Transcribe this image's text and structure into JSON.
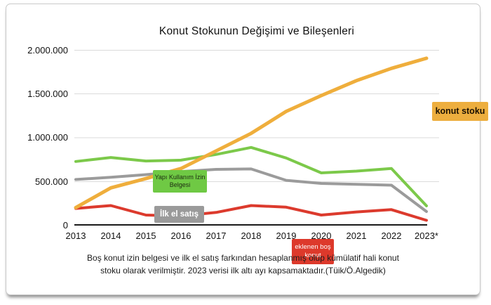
{
  "title": "Konut Stokunun Değişimi ve Bileşenleri",
  "caption": {
    "line1": "Boş konut izin belgesi ve ilk el satış farkından hesaplanmış olup kümülatif hali konut",
    "line2": "stoku olarak verilmiştir. 2023 verisi ilk altı ayı kapsamaktadır.(Tüik/Ö.Algedik)"
  },
  "y_axis": {
    "labels": [
      "2.000.000",
      "1.500.000",
      "1.000.000",
      "500.000",
      "0"
    ]
  },
  "x_axis": {
    "labels": [
      "2013",
      "2014",
      "2015",
      "2016",
      "2017",
      "2018",
      "2019",
      "2020",
      "2021",
      "2022",
      "2023*"
    ]
  },
  "series_labels": {
    "konut_stoku": "konut stoku",
    "yapi_kullanim": "Yapı Kullanım İzin\nBelgesi",
    "ilk_el_satis": "İlk el satış",
    "eklenen_bos_konut": "eklenen boş\nkonut"
  },
  "colors": {
    "konut_stoku": "#efae3c",
    "yapi_kullanim": "#7cc94a",
    "ilk_el_satis": "#9b9b9b",
    "eklenen_bos_konut": "#dc3a2d",
    "gridline": "#dbdbdb",
    "axis": "#1a1a1a"
  },
  "chart_data": {
    "type": "line",
    "title": "Konut Stokunun Değişimi ve Bileşenleri",
    "categories": [
      "2013",
      "2014",
      "2015",
      "2016",
      "2017",
      "2018",
      "2019",
      "2020",
      "2021",
      "2022",
      "2023*"
    ],
    "series": [
      {
        "name": "konut stoku",
        "color": "#efae3c",
        "values": [
          205000,
          430000,
          535000,
          650000,
          850000,
          1050000,
          1300000,
          1480000,
          1650000,
          1790000,
          1905000
        ]
      },
      {
        "name": "Yapı Kullanım İzin Belgesi",
        "color": "#7cc94a",
        "values": [
          730000,
          775000,
          735000,
          745000,
          810000,
          890000,
          770000,
          600000,
          620000,
          650000,
          225000
        ]
      },
      {
        "name": "İlk el satış",
        "color": "#9b9b9b",
        "values": [
          525000,
          550000,
          580000,
          615000,
          640000,
          645000,
          515000,
          480000,
          470000,
          460000,
          160000
        ]
      },
      {
        "name": "eklenen boş konut",
        "color": "#dc3a2d",
        "values": [
          195000,
          228000,
          120000,
          110000,
          150000,
          228000,
          210000,
          120000,
          155000,
          182000,
          60000
        ]
      }
    ],
    "ylim": [
      0,
      2000000
    ],
    "y_ticks": [
      0,
      500000,
      1000000,
      1500000,
      2000000
    ],
    "grid": true,
    "legend": "inline-labels-on-chart",
    "note": "2023 verisi ilk altı ayı kapsamaktadır"
  }
}
